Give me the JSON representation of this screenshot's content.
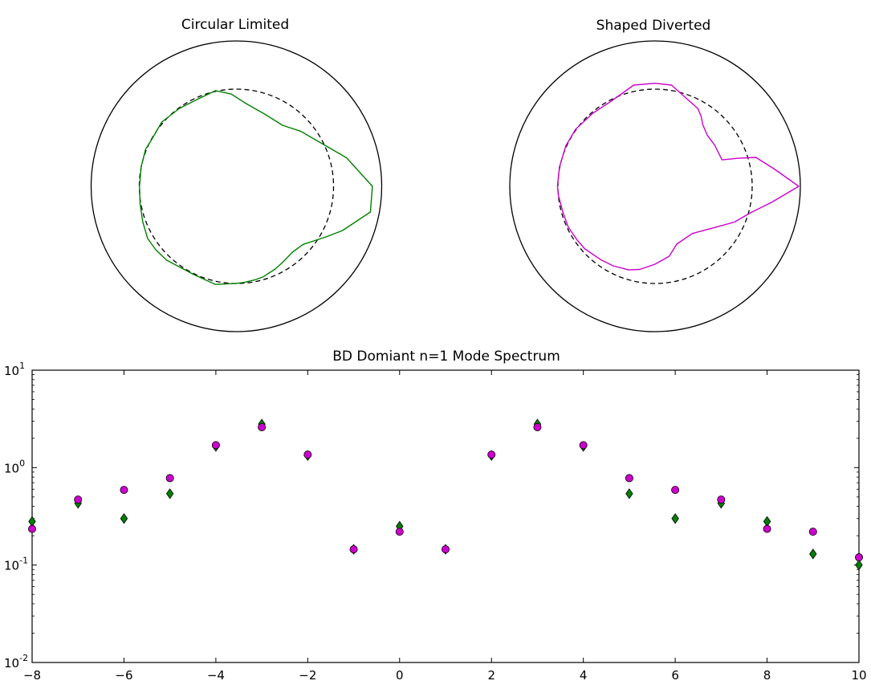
{
  "chart_data": [
    {
      "type": "polar-outline",
      "title": "Circular Limited",
      "color": "#008000",
      "outer_circle_color": "#000000",
      "reference_circle_style": "dashed",
      "reference_radius_fraction": 0.67,
      "outline_points": [
        [
          -0.667,
          0.0
        ],
        [
          -0.656,
          0.133
        ],
        [
          -0.625,
          0.256
        ],
        [
          -0.583,
          0.322
        ],
        [
          -0.514,
          0.442
        ],
        [
          -0.392,
          0.536
        ],
        [
          -0.261,
          0.602
        ],
        [
          -0.144,
          0.658
        ],
        [
          -0.036,
          0.635
        ],
        [
          0.067,
          0.569
        ],
        [
          0.194,
          0.497
        ],
        [
          0.317,
          0.42
        ],
        [
          0.444,
          0.378
        ],
        [
          0.572,
          0.304
        ],
        [
          0.758,
          0.196
        ],
        [
          0.936,
          0.0
        ],
        [
          0.922,
          -0.177
        ],
        [
          0.731,
          -0.304
        ],
        [
          0.617,
          -0.348
        ],
        [
          0.458,
          -0.4
        ],
        [
          0.386,
          -0.453
        ],
        [
          0.311,
          -0.53
        ],
        [
          0.267,
          -0.569
        ],
        [
          0.183,
          -0.624
        ],
        [
          0.128,
          -0.643
        ],
        [
          0.056,
          -0.661
        ],
        [
          0.0,
          -0.668
        ],
        [
          -0.144,
          -0.675
        ],
        [
          -0.292,
          -0.608
        ],
        [
          -0.481,
          -0.508
        ],
        [
          -0.556,
          -0.436
        ],
        [
          -0.611,
          -0.359
        ],
        [
          -0.645,
          -0.243
        ],
        [
          -0.663,
          -0.122
        ],
        [
          -0.667,
          0.0
        ]
      ]
    },
    {
      "type": "polar-outline",
      "title": "Shaped Diverted",
      "color": "#cc00cc",
      "outer_circle_color": "#000000",
      "reference_circle_style": "dashed",
      "reference_radius_fraction": 0.67,
      "outline_points": [
        [
          -0.672,
          0.0
        ],
        [
          -0.658,
          0.133
        ],
        [
          -0.614,
          0.279
        ],
        [
          -0.547,
          0.392
        ],
        [
          -0.428,
          0.503
        ],
        [
          -0.294,
          0.591
        ],
        [
          -0.147,
          0.696
        ],
        [
          0.0,
          0.709
        ],
        [
          0.114,
          0.696
        ],
        [
          0.206,
          0.613
        ],
        [
          0.294,
          0.536
        ],
        [
          0.317,
          0.481
        ],
        [
          0.328,
          0.425
        ],
        [
          0.358,
          0.354
        ],
        [
          0.411,
          0.282
        ],
        [
          0.461,
          0.182
        ],
        [
          0.572,
          0.193
        ],
        [
          0.694,
          0.199
        ],
        [
          0.825,
          0.116
        ],
        [
          0.989,
          0.0
        ],
        [
          0.803,
          -0.11
        ],
        [
          0.661,
          -0.18
        ],
        [
          0.547,
          -0.246
        ],
        [
          0.408,
          -0.284
        ],
        [
          0.256,
          -0.325
        ],
        [
          0.15,
          -0.398
        ],
        [
          0.097,
          -0.481
        ],
        [
          0.0,
          -0.536
        ],
        [
          -0.105,
          -0.572
        ],
        [
          -0.183,
          -0.575
        ],
        [
          -0.289,
          -0.547
        ],
        [
          -0.369,
          -0.508
        ],
        [
          -0.483,
          -0.431
        ],
        [
          -0.536,
          -0.37
        ],
        [
          -0.597,
          -0.281
        ],
        [
          -0.633,
          -0.182
        ],
        [
          -0.664,
          -0.066
        ],
        [
          -0.672,
          0.0
        ]
      ]
    },
    {
      "type": "scatter",
      "title": "BD Domiant n=1 Mode Spectrum",
      "xlabel": "",
      "ylabel": "",
      "xlim": [
        -8,
        10
      ],
      "ylim": [
        0.01,
        10
      ],
      "yscale": "log",
      "grid": false,
      "x_ticks": [
        "−8",
        "−6",
        "−4",
        "−2",
        "0",
        "2",
        "4",
        "6",
        "8",
        "10"
      ],
      "x_tick_values": [
        -8,
        -6,
        -4,
        -2,
        0,
        2,
        4,
        6,
        8,
        10
      ],
      "y_ticks": [
        {
          "value": 10,
          "base": "10",
          "exp": "1"
        },
        {
          "value": 1,
          "base": "10",
          "exp": "0"
        },
        {
          "value": 0.1,
          "base": "10",
          "exp": "-1"
        },
        {
          "value": 0.01,
          "base": "10",
          "exp": "-2"
        }
      ],
      "series": [
        {
          "marker": "diamond",
          "color": "#008000",
          "x": [
            -8,
            -7,
            -6,
            -5,
            -4,
            -3,
            -2,
            -1,
            0,
            1,
            2,
            3,
            4,
            5,
            6,
            7,
            8,
            9,
            10
          ],
          "y": [
            0.28,
            0.43,
            0.3,
            0.54,
            1.65,
            2.8,
            1.33,
            0.145,
            0.25,
            0.145,
            1.33,
            2.8,
            1.65,
            0.54,
            0.3,
            0.43,
            0.28,
            0.13,
            0.1
          ]
        },
        {
          "marker": "circle",
          "color": "#cc00cc",
          "x": [
            -8,
            -7,
            -6,
            -5,
            -4,
            -3,
            -2,
            -1,
            0,
            1,
            2,
            3,
            4,
            5,
            6,
            7,
            8,
            9,
            10
          ],
          "y": [
            0.235,
            0.47,
            0.59,
            0.78,
            1.7,
            2.6,
            1.36,
            0.145,
            0.22,
            0.145,
            1.36,
            2.6,
            1.7,
            0.78,
            0.59,
            0.47,
            0.235,
            0.22,
            0.12
          ]
        }
      ]
    }
  ]
}
